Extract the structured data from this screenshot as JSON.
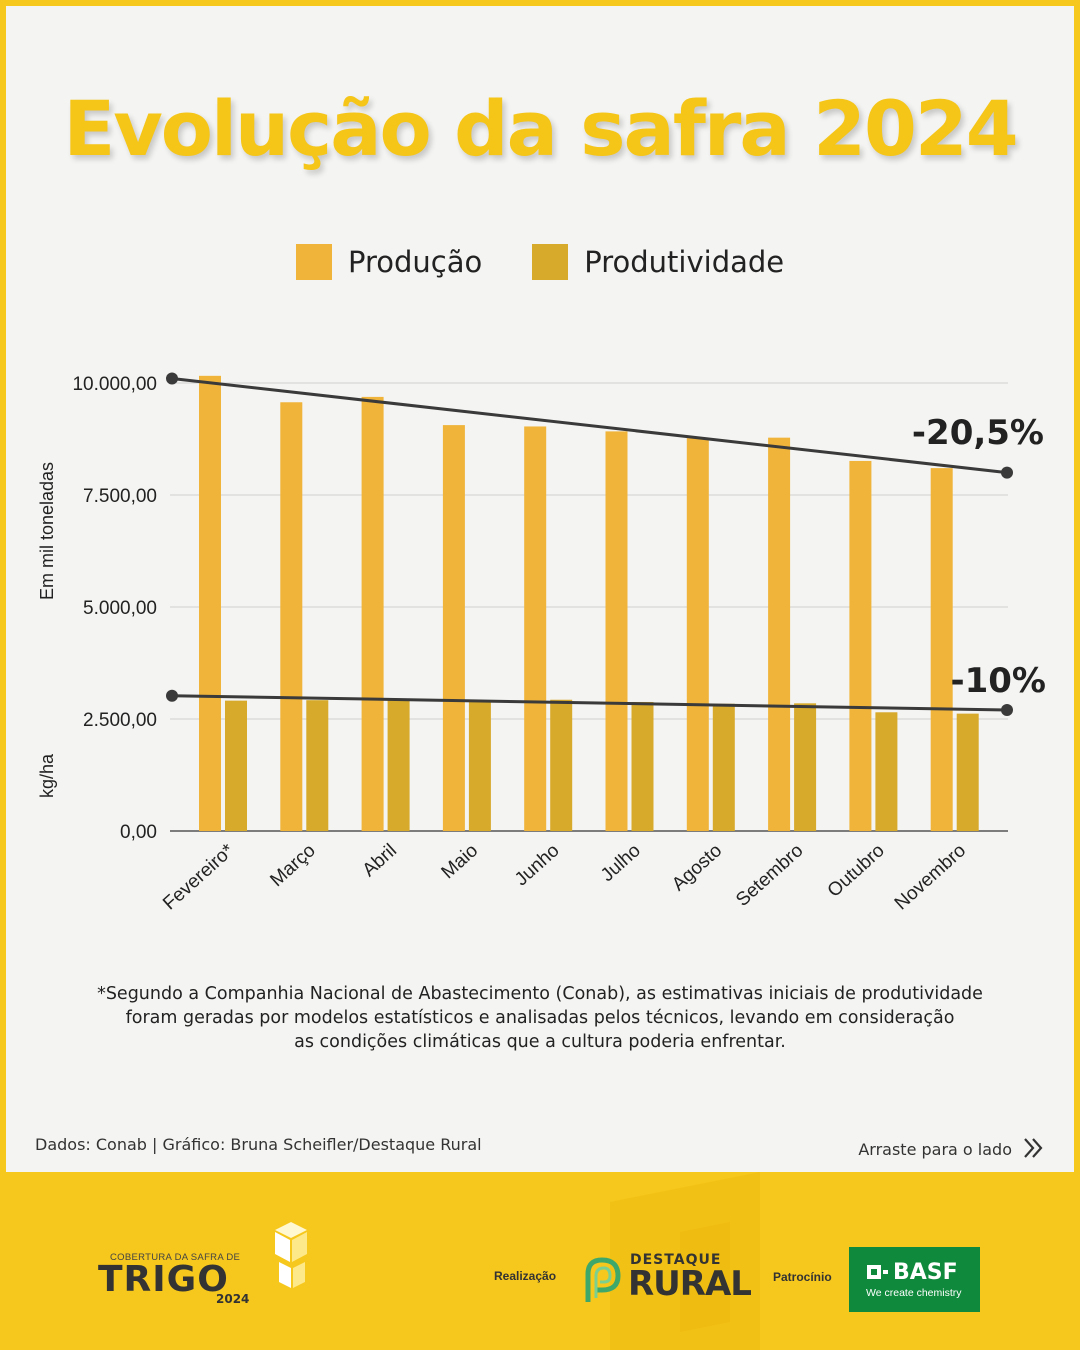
{
  "title": "Evolução da safra 2024",
  "legend": [
    {
      "label": "Produção",
      "color": "#f0b43a"
    },
    {
      "label": "Produtividade",
      "color": "#d7aa2c"
    }
  ],
  "axis_labels": {
    "primary": "Em mil toneladas",
    "secondary": "kg/ha"
  },
  "chart_data": {
    "type": "bar",
    "categories": [
      "Fevereiro*",
      "Março",
      "Abril",
      "Maio",
      "Junho",
      "Julho",
      "Agosto",
      "Setembro",
      "Outubro",
      "Novembro"
    ],
    "series": [
      {
        "name": "Produção",
        "values": [
          10160,
          9570,
          9690,
          9060,
          9030,
          8920,
          8770,
          8780,
          8260,
          8100
        ]
      },
      {
        "name": "Produtividade",
        "values": [
          2910,
          2920,
          2920,
          2920,
          2930,
          2880,
          2840,
          2850,
          2650,
          2620
        ]
      }
    ],
    "y_ticks": [
      "0,00",
      "2.500,00",
      "5.000,00",
      "7.500,00",
      "10.000,00"
    ],
    "ylim": [
      0,
      10000
    ],
    "grid": true,
    "trend_lines": [
      {
        "series": "Produção",
        "start": 10100,
        "end": 8000,
        "label": "-20,5%"
      },
      {
        "series": "Produtividade",
        "start": 3020,
        "end": 2700,
        "label": "-10%"
      }
    ]
  },
  "footnote": [
    "*Segundo a Companhia Nacional de Abastecimento (Conab), as estimativas iniciais de produtividade",
    "foram geradas por modelos estatísticos e analisadas pelos técnicos, levando em consideração",
    "as condições climáticas que a cultura poderia enfrentar."
  ],
  "credits": "Dados: Conab | Gráfico: Bruna Scheifler/Destaque Rural",
  "swipe_hint": "Arraste para o lado",
  "swipe_icon": "double-chevron-right-icon",
  "footer": {
    "trigo_top": "COBERTURA DA SAFRA DE",
    "trigo_word": "TRIGO",
    "trigo_year": "2024",
    "realizacao": "Realização",
    "dr_line1": "DESTAQUE",
    "dr_line2": "RURAL",
    "patrocinio": "Patrocínio",
    "basf_name": "BASF",
    "basf_tagline": "We create chemistry"
  }
}
